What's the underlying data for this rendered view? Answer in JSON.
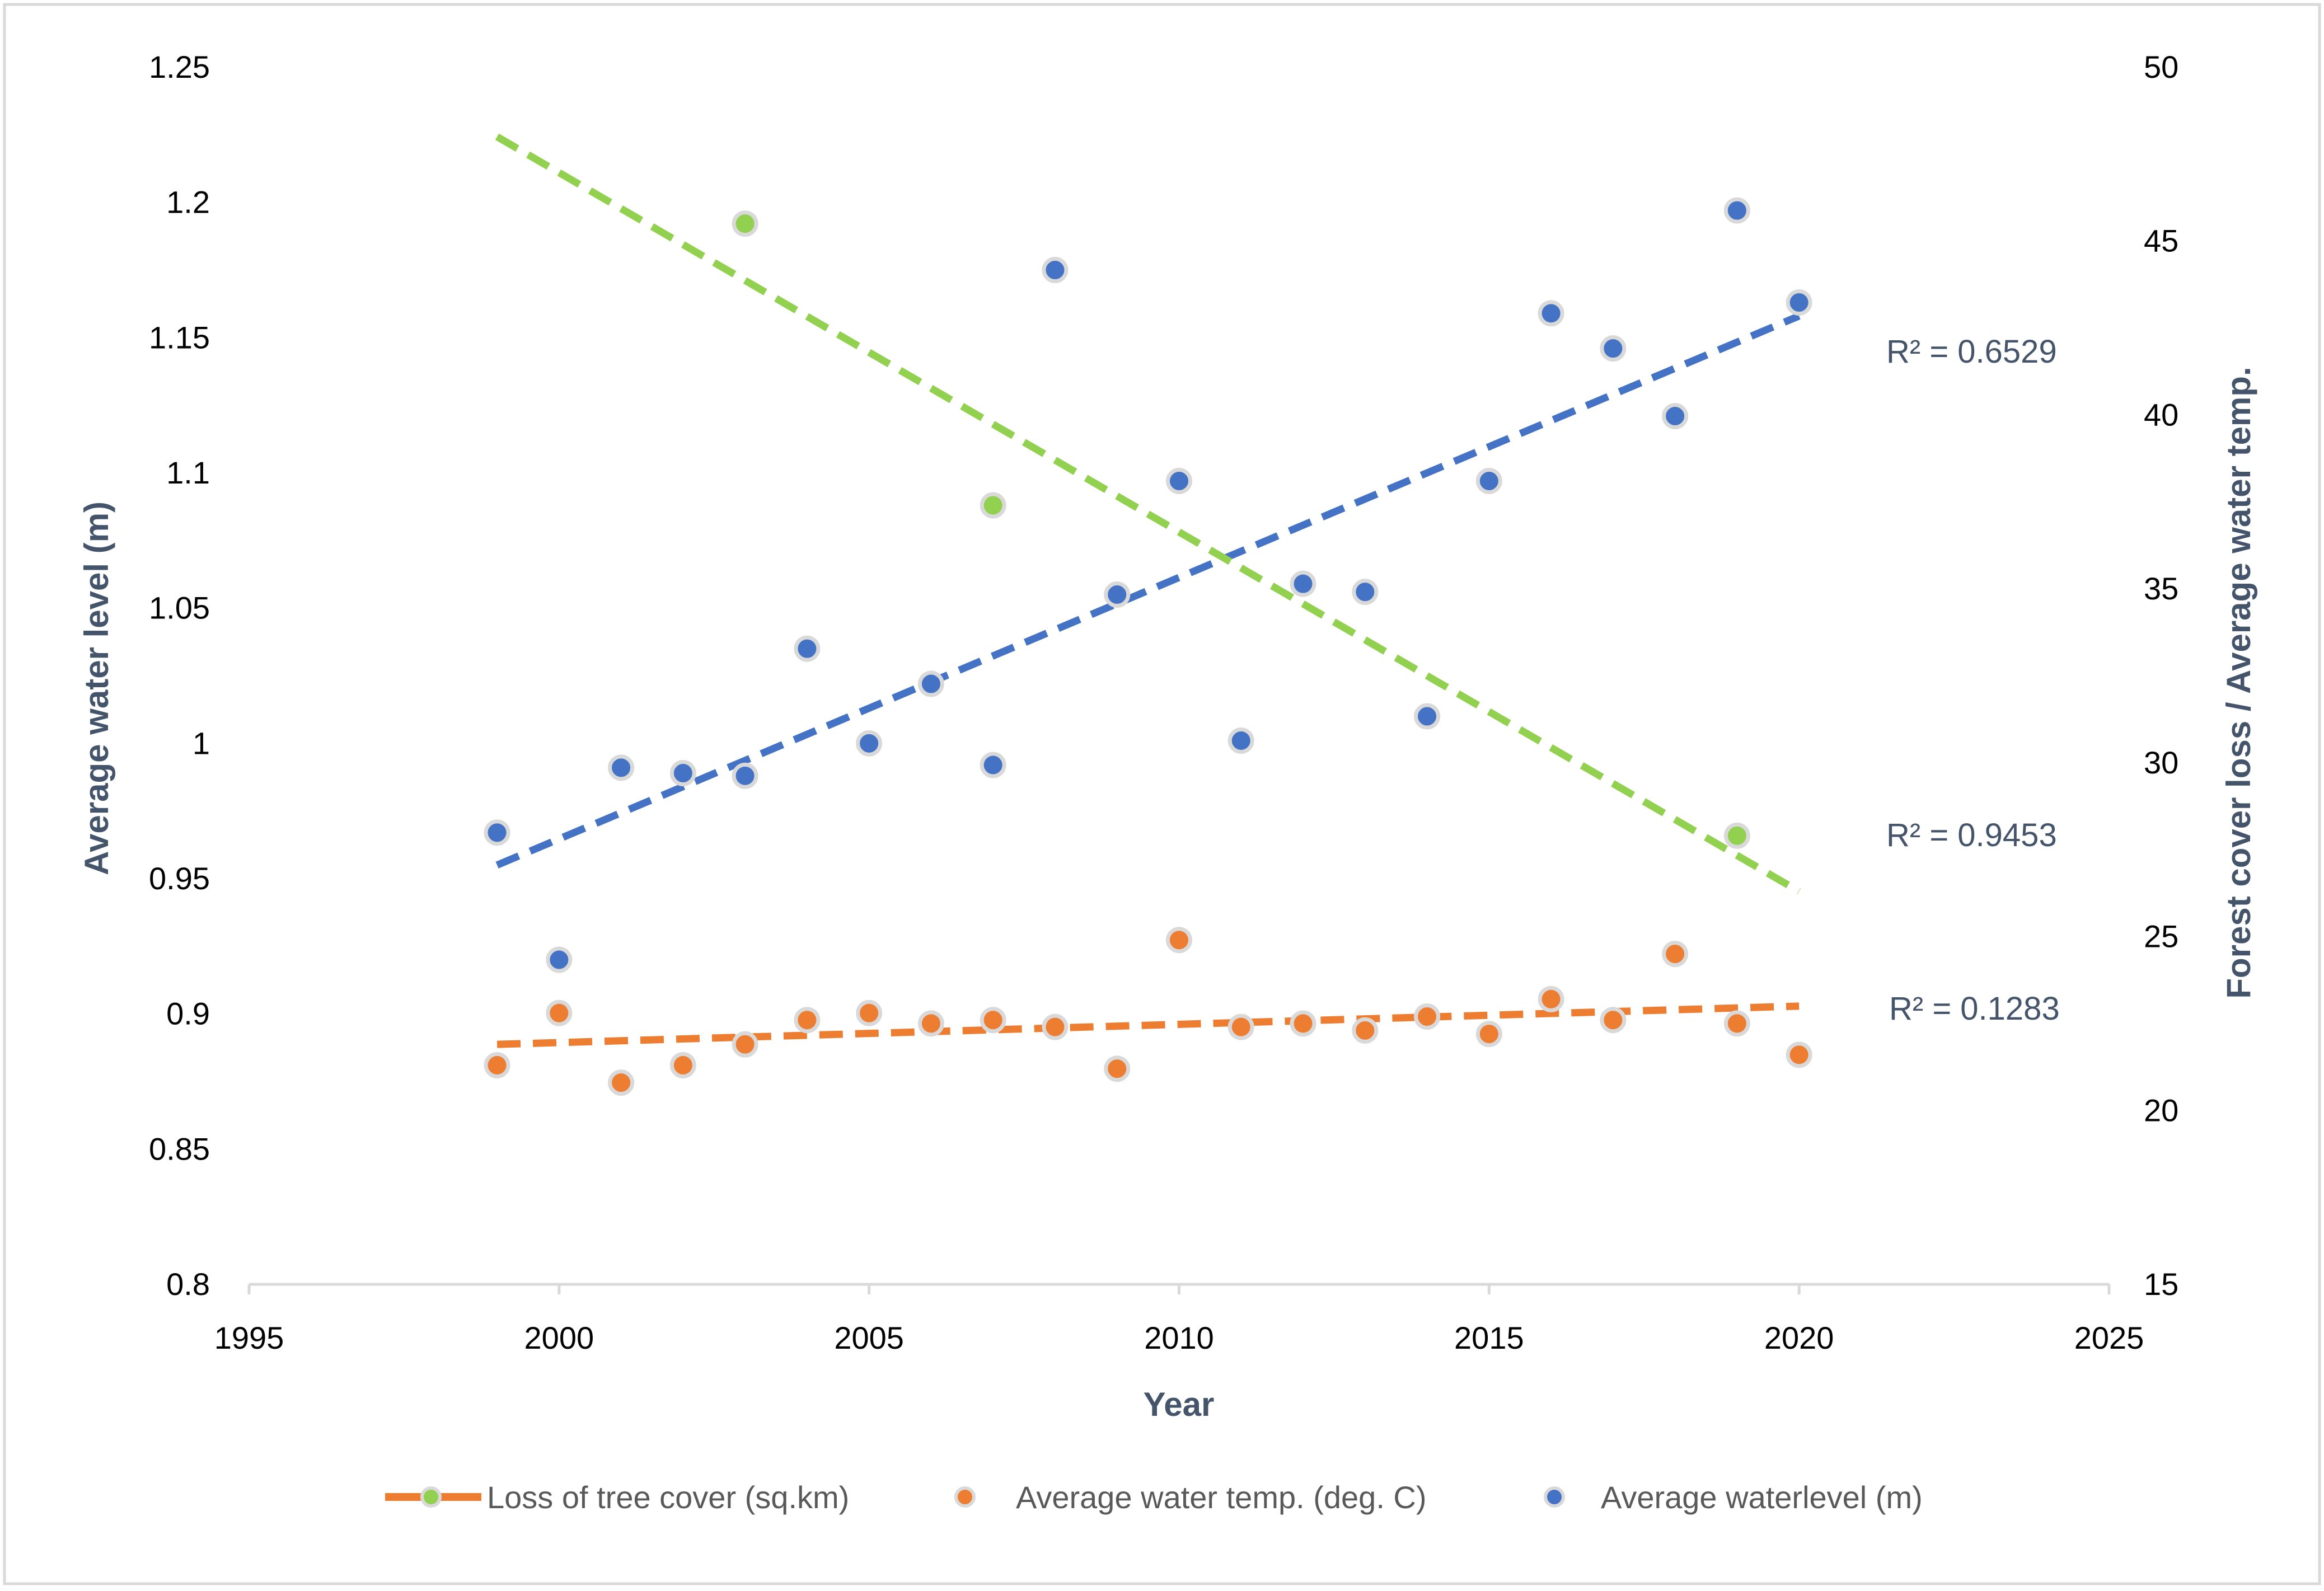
{
  "colors": {
    "tree_cover": "#92d050",
    "water_temp": "#ed7d31",
    "water_level": "#4472c4",
    "axis_title": "#44546a",
    "axis_line": "#d9d9d9",
    "frame": "#d9d9d9",
    "marker_outline": "#d9d9d9"
  },
  "chart_data": {
    "type": "scatter",
    "xlabel": "Year",
    "ylabel_left": "Average water level (m)",
    "ylabel_right": "Forest cover loss  / Average water temp.",
    "xlim": [
      1995,
      2025
    ],
    "ylim_left": [
      0.8,
      1.25
    ],
    "ylim_right": [
      15,
      50
    ],
    "x_ticks": [
      1995,
      2000,
      2005,
      2010,
      2015,
      2020,
      2025
    ],
    "y_ticks_left": [
      "0.8",
      "0.85",
      "0.9",
      "0.95",
      "1",
      "1.05",
      "1.1",
      "1.15",
      "1.2",
      "1.25"
    ],
    "y_ticks_right": [
      "15",
      "20",
      "25",
      "30",
      "35",
      "40",
      "45",
      "50"
    ],
    "grid": false,
    "legend_position": "bottom",
    "series": [
      {
        "id": "tree_cover",
        "name": "Loss of tree cover (sq.km)",
        "axis": "right",
        "x": [
          2003,
          2007,
          2019
        ],
        "y": [
          45.5,
          37.4,
          27.9
        ],
        "trendline": {
          "x": [
            1999,
            2020
          ],
          "y": [
            48.0,
            26.3
          ],
          "r2_label": "R² = 0.9453"
        }
      },
      {
        "id": "water_temp",
        "name": "Average water temp. (deg. C)",
        "axis": "right",
        "x": [
          1999,
          2000,
          2001,
          2002,
          2003,
          2004,
          2005,
          2006,
          2007,
          2008,
          2009,
          2010,
          2011,
          2012,
          2013,
          2014,
          2015,
          2016,
          2017,
          2018,
          2019,
          2020
        ],
        "y": [
          21.3,
          22.8,
          20.8,
          21.3,
          21.9,
          22.6,
          22.8,
          22.5,
          22.6,
          22.4,
          21.2,
          24.9,
          22.4,
          22.5,
          22.3,
          22.7,
          22.2,
          23.2,
          22.6,
          24.5,
          22.5,
          21.6
        ],
        "trendline": {
          "x": [
            1999,
            2020
          ],
          "y": [
            21.9,
            23.0
          ],
          "r2_label": "R² = 0.1283"
        }
      },
      {
        "id": "water_level",
        "name": "Average waterlevel  (m)",
        "axis": "left",
        "x": [
          1999,
          2000,
          2001,
          2002,
          2003,
          2004,
          2005,
          2006,
          2007,
          2008,
          2009,
          2010,
          2011,
          2012,
          2013,
          2014,
          2015,
          2016,
          2017,
          2018,
          2019,
          2020
        ],
        "y": [
          0.967,
          0.92,
          0.991,
          0.989,
          0.988,
          1.035,
          1.0,
          1.022,
          0.992,
          1.175,
          1.055,
          1.097,
          1.001,
          1.059,
          1.056,
          1.01,
          1.097,
          1.159,
          1.146,
          1.121,
          1.197,
          1.163
        ],
        "trendline": {
          "x": [
            1999,
            2020
          ],
          "y": [
            0.955,
            1.158
          ],
          "r2_label": "R² = 0.6529"
        }
      }
    ]
  }
}
